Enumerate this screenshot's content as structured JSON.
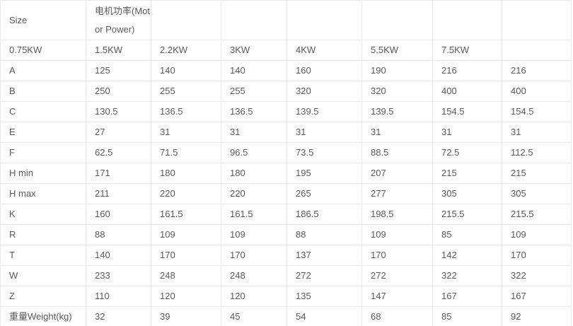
{
  "colors": {
    "table_border": "#e8e8e8",
    "cell_text": "#595959",
    "background": "#ffffff"
  },
  "table": {
    "rows": [
      [
        "Size",
        "电机功率(Motor Power)",
        "",
        "",
        "",
        "",
        "",
        ""
      ],
      [
        "0.75KW",
        "1.5KW",
        "2.2KW",
        "3KW",
        "4KW",
        "5.5KW",
        "7.5KW",
        ""
      ],
      [
        "A",
        "125",
        "140",
        "140",
        "160",
        "190",
        "216",
        "216"
      ],
      [
        "B",
        "250",
        "255",
        "255",
        "320",
        "320",
        "400",
        "400"
      ],
      [
        "C",
        "130.5",
        "136.5",
        "136.5",
        "139.5",
        "139.5",
        "154.5",
        "154.5"
      ],
      [
        "E",
        "27",
        "31",
        "31",
        "31",
        "31",
        "31",
        "31"
      ],
      [
        "F",
        "62.5",
        "71.5",
        "96.5",
        "73.5",
        "88.5",
        "72.5",
        "112.5"
      ],
      [
        "H min",
        "171",
        "180",
        "180",
        "195",
        "207",
        "215",
        "215"
      ],
      [
        "H max",
        "211",
        "220",
        "220",
        "265",
        "277",
        "305",
        "305"
      ],
      [
        "K",
        "160",
        "161.5",
        "161.5",
        "186.5",
        "198.5",
        "215.5",
        "215.5"
      ],
      [
        "R",
        "88",
        "109",
        "109",
        "88",
        "109",
        "85",
        "109"
      ],
      [
        "T",
        "140",
        "170",
        "170",
        "137",
        "170",
        "142",
        "170"
      ],
      [
        "W",
        "233",
        "248",
        "248",
        "272",
        "272",
        "322",
        "322"
      ],
      [
        "Z",
        "110",
        "120",
        "120",
        "135",
        "147",
        "167",
        "167"
      ],
      [
        "重量Weight(kg)",
        "32",
        "39",
        "45",
        "54",
        "68",
        "85",
        "92"
      ]
    ]
  }
}
